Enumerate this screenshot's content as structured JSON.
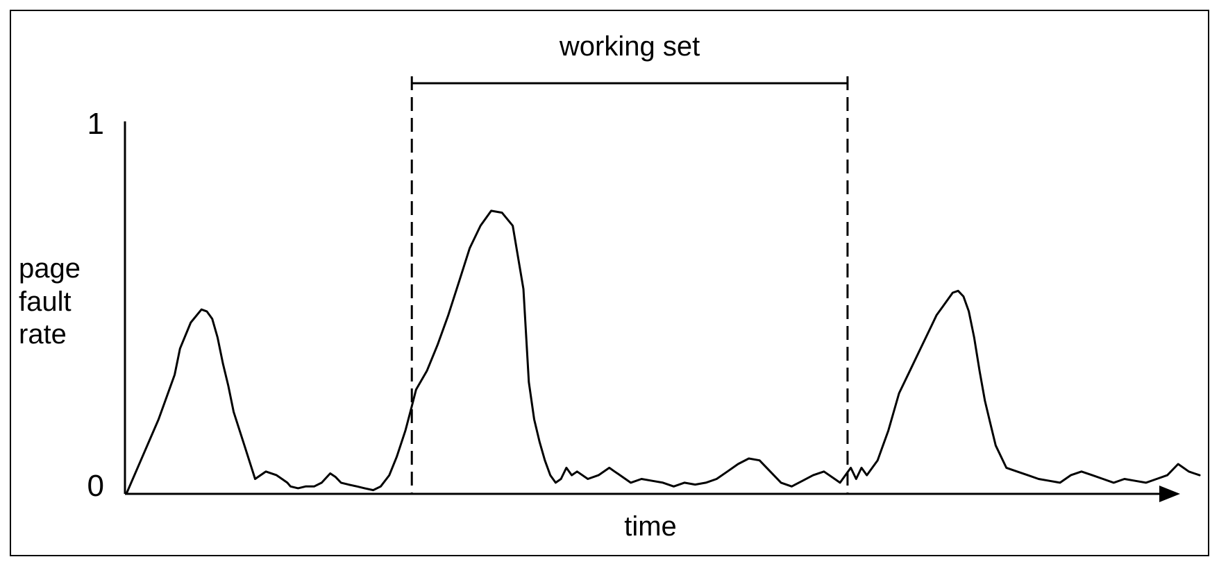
{
  "chart_data": {
    "type": "line",
    "title": "",
    "xlabel": "time",
    "ylabel_lines": [
      "page",
      "fault",
      "rate"
    ],
    "yticks": [
      "0",
      "1"
    ],
    "ylim": [
      0,
      1
    ],
    "xlim": [
      0,
      100
    ],
    "grid": false,
    "legend": "none",
    "annotation": {
      "label": "working set",
      "x_start": 26.6,
      "x_end": 67.2
    },
    "series": [
      {
        "color": "#000000",
        "x": [
          0,
          1.5,
          3,
          4.5,
          5,
          6,
          7,
          7.5,
          8,
          8.5,
          9,
          9.5,
          10,
          11,
          12,
          13,
          14,
          14.5,
          15,
          15.3,
          16,
          16.7,
          17.5,
          18.2,
          19,
          19.5,
          20,
          20.7,
          21.5,
          22.2,
          23,
          23.7,
          24.5,
          25.2,
          26,
          26.6,
          27,
          28,
          29,
          30,
          31,
          32,
          33,
          34,
          35,
          36,
          37,
          37.5,
          38,
          38.5,
          39,
          39.5,
          40,
          40.5,
          41,
          41.5,
          42,
          43,
          44,
          45,
          45.5,
          46,
          46.5,
          47,
          48,
          49,
          50,
          51,
          52,
          53,
          54,
          55,
          56,
          57,
          58,
          59,
          60,
          61,
          62,
          63,
          64,
          65,
          66,
          66.5,
          67,
          67.5,
          68,
          68.5,
          69,
          70,
          71,
          72,
          73,
          74,
          75,
          75.5,
          76,
          76.5,
          77,
          77.5,
          78,
          78.5,
          79,
          79.5,
          80,
          80.5,
          81,
          82,
          83,
          84,
          85,
          86,
          87,
          88,
          89,
          90,
          91,
          92,
          93,
          94,
          95,
          96,
          97,
          98,
          98.5,
          99,
          99.5,
          100
        ],
        "values": [
          0,
          0.1,
          0.2,
          0.32,
          0.39,
          0.46,
          0.495,
          0.49,
          0.47,
          0.42,
          0.35,
          0.29,
          0.22,
          0.13,
          0.04,
          0.06,
          0.05,
          0.04,
          0.03,
          0.02,
          0.015,
          0.02,
          0.02,
          0.03,
          0.055,
          0.045,
          0.03,
          0.025,
          0.02,
          0.015,
          0.01,
          0.02,
          0.05,
          0.1,
          0.17,
          0.235,
          0.28,
          0.33,
          0.4,
          0.48,
          0.57,
          0.66,
          0.72,
          0.76,
          0.755,
          0.72,
          0.55,
          0.3,
          0.2,
          0.14,
          0.09,
          0.05,
          0.03,
          0.04,
          0.07,
          0.05,
          0.06,
          0.04,
          0.05,
          0.07,
          0.06,
          0.05,
          0.04,
          0.03,
          0.04,
          0.035,
          0.03,
          0.02,
          0.03,
          0.025,
          0.03,
          0.04,
          0.06,
          0.08,
          0.095,
          0.09,
          0.06,
          0.03,
          0.02,
          0.035,
          0.05,
          0.06,
          0.04,
          0.03,
          0.05,
          0.07,
          0.04,
          0.07,
          0.05,
          0.09,
          0.17,
          0.27,
          0.33,
          0.39,
          0.45,
          0.48,
          0.5,
          0.52,
          0.54,
          0.545,
          0.53,
          0.49,
          0.42,
          0.33,
          0.25,
          0.19,
          0.13,
          0.07,
          0.06,
          0.05,
          0.04,
          0.035,
          0.03,
          0.05,
          0.06,
          0.05,
          0.04,
          0.03,
          0.04,
          0.035,
          0.03,
          0.04,
          0.05,
          0.08,
          0.07,
          0.06,
          0.055,
          0.05
        ]
      }
    ]
  }
}
